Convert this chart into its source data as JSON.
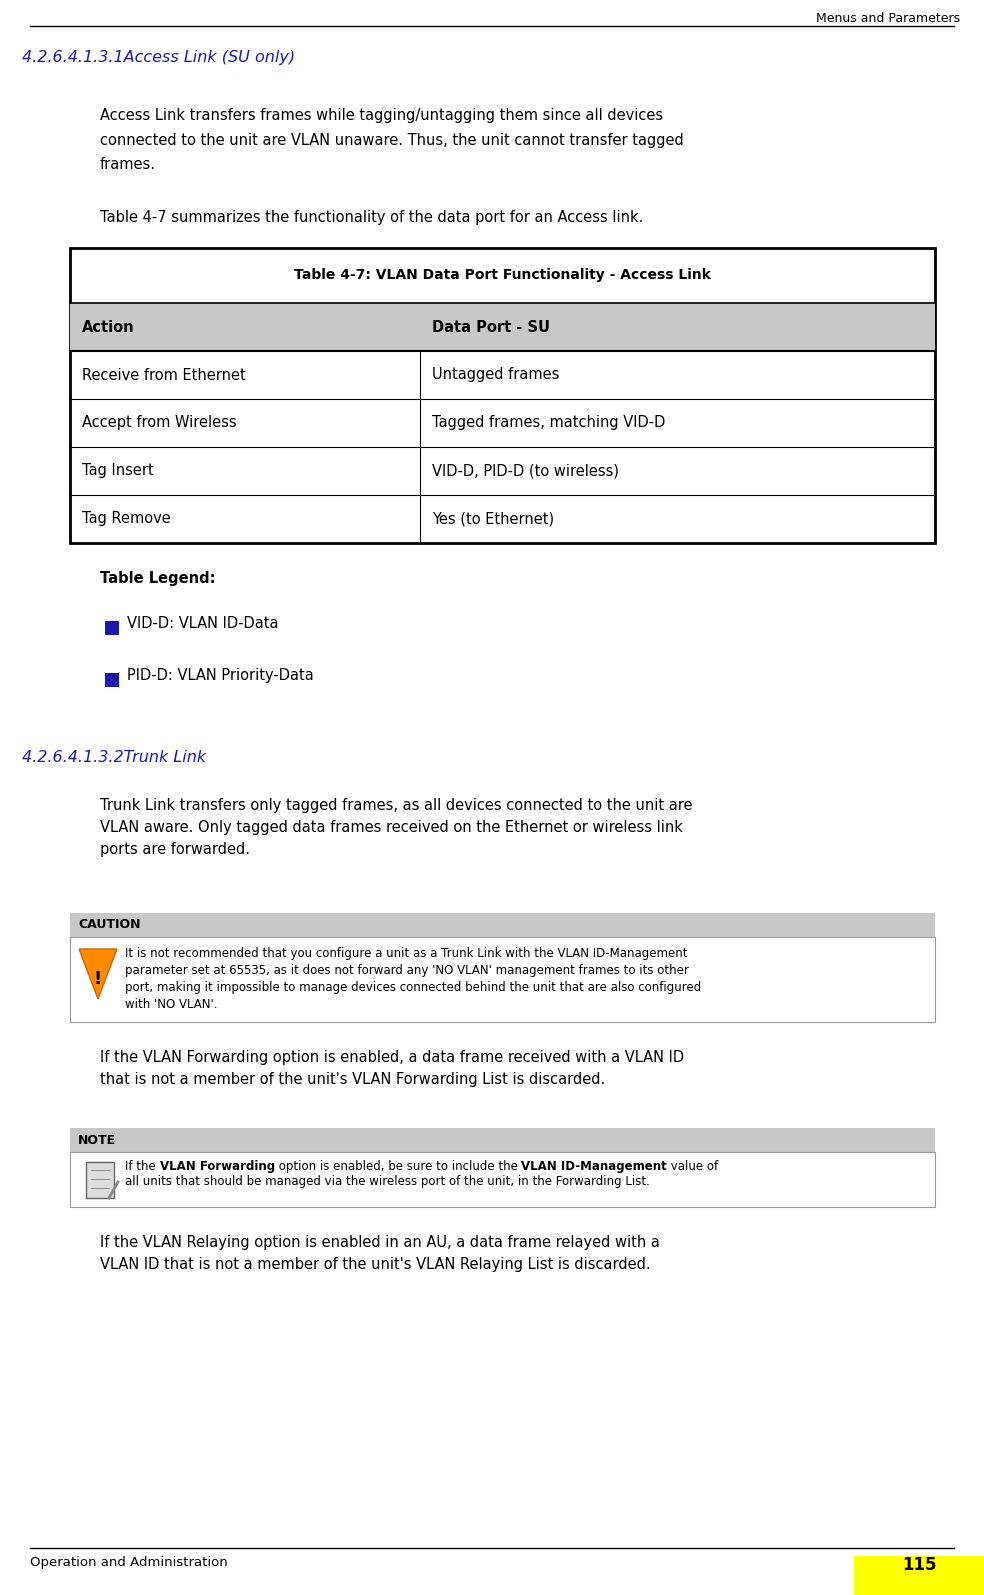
{
  "page_title": "Menus and Parameters",
  "footer_text": "Operation and Administration",
  "footer_page": "115",
  "section1_title": "4.2.6.4.1.3.1Access Link (SU only)",
  "section1_color": "#1a1aaa",
  "section1_para1": "Access Link transfers frames while tagging/untagging them since all devices\nconnected to the unit are VLAN unaware. Thus, the unit cannot transfer tagged\nframes.",
  "section1_para2": "Table 4-7 summarizes the functionality of the data port for an Access link.",
  "table_title": "Table 4-7: VLAN Data Port Functionality - Access Link",
  "table_header": [
    "Action",
    "Data Port - SU"
  ],
  "table_rows": [
    [
      "Receive from Ethernet",
      "Untagged frames"
    ],
    [
      "Accept from Wireless",
      "Tagged frames, matching VID-D"
    ],
    [
      "Tag Insert",
      "VID-D, PID-D (to wireless)"
    ],
    [
      "Tag Remove",
      "Yes (to Ethernet)"
    ]
  ],
  "table_header_bg": "#C8C8C8",
  "legend_title": "Table Legend:",
  "legend_items": [
    "VID-D: VLAN ID-Data",
    "PID-D: VLAN Priority-Data"
  ],
  "legend_bullet_color": "#1a1aaa",
  "section2_title": "4.2.6.4.1.3.2Trunk Link",
  "section2_color": "#1a1aaa",
  "section2_para1": "Trunk Link transfers only tagged frames, as all devices connected to the unit are\nVLAN aware. Only tagged data frames received on the Ethernet or wireless link\nports are forwarded.",
  "caution_label": "CAUTION",
  "caution_bg": "#C8C8C8",
  "caution_text": "It is not recommended that you configure a unit as a Trunk Link with the VLAN ID-Management\nparameter set at 65535, as it does not forward any 'NO VLAN' management frames to its other\nport, making it impossible to manage devices connected behind the unit that are also configured\nwith 'NO VLAN'.",
  "section2_para2": "If the VLAN Forwarding option is enabled, a data frame received with a VLAN ID\nthat is not a member of the unit's VLAN Forwarding List is discarded.",
  "note_label": "NOTE",
  "note_bg": "#C8C8C8",
  "note_line1_parts": [
    [
      "normal",
      "If the "
    ],
    [
      "bold",
      "VLAN Forwarding"
    ],
    [
      "normal",
      " option is enabled, be sure to include the "
    ],
    [
      "bold",
      "VLAN ID-Management"
    ],
    [
      "normal",
      " value of"
    ]
  ],
  "note_line2": "all units that should be managed via the wireless port of the unit, in the Forwarding List.",
  "section2_para3": "If the VLAN Relaying option is enabled in an AU, a data frame relayed with a\nVLAN ID that is not a member of the unit's VLAN Relaying List is discarded.",
  "bg_color": "#FFFFFF",
  "text_color": "#000000"
}
